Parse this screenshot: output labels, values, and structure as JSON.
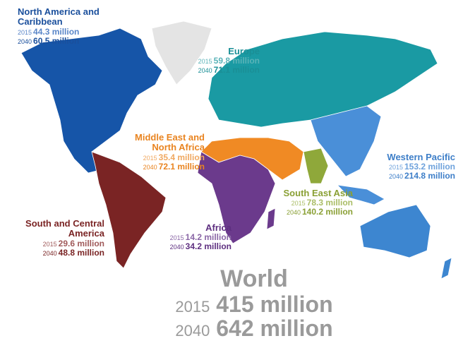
{
  "regions": [
    {
      "name": "North America and Caribbean",
      "rows": [
        {
          "year": "2015",
          "value": "44.3 million"
        },
        {
          "year": "2040",
          "value": "60.5 million"
        }
      ]
    },
    {
      "name": "Europe",
      "rows": [
        {
          "year": "2015",
          "value": "59.8 million"
        },
        {
          "year": "2040",
          "value": "71.1 million"
        }
      ]
    },
    {
      "name": "Middle East and North Africa",
      "rows": [
        {
          "year": "2015",
          "value": "35.4 million"
        },
        {
          "year": "2040",
          "value": "72.1 million"
        }
      ]
    },
    {
      "name": "Western Pacific",
      "rows": [
        {
          "year": "2015",
          "value": "153.2 million"
        },
        {
          "year": "2040",
          "value": "214.8 million"
        }
      ]
    },
    {
      "name": "South East Asia",
      "rows": [
        {
          "year": "2015",
          "value": "78.3 million"
        },
        {
          "year": "2040",
          "value": "140.2 million"
        }
      ]
    },
    {
      "name": "Africa",
      "rows": [
        {
          "year": "2015",
          "value": "14.2 million"
        },
        {
          "year": "2040",
          "value": "34.2 million"
        }
      ]
    },
    {
      "name": "South and Central America",
      "rows": [
        {
          "year": "2015",
          "value": "29.6 million"
        },
        {
          "year": "2040",
          "value": "48.8 million"
        }
      ]
    }
  ],
  "world": {
    "title": "World",
    "rows": [
      {
        "year": "2015",
        "value": "415 million"
      },
      {
        "year": "2040",
        "value": "642 million"
      }
    ]
  }
}
